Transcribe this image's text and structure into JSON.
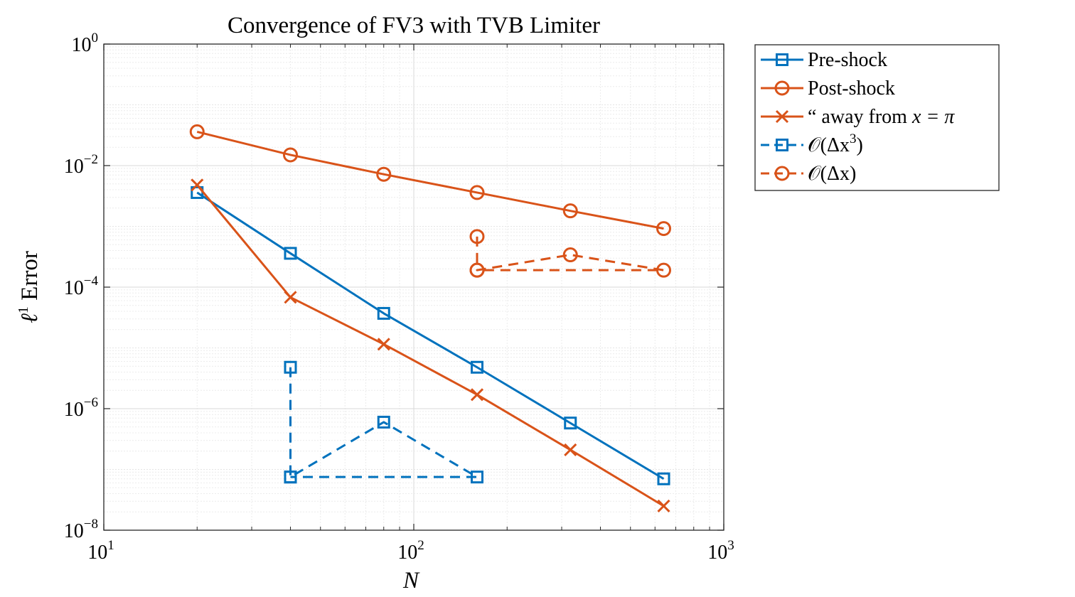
{
  "chart_data": {
    "type": "line",
    "title": "Convergence of FV3 with TVB Limiter",
    "xlabel": "N",
    "ylabel_symbol": "ℓ",
    "ylabel_sup": "1",
    "ylabel_text": " Error",
    "x_scale": "log",
    "y_scale": "log",
    "xlim": [
      10,
      1000
    ],
    "ylim": [
      1e-08,
      1
    ],
    "x_ticks": [
      {
        "base": "10",
        "exp": "1",
        "value": 10
      },
      {
        "base": "10",
        "exp": "2",
        "value": 100
      },
      {
        "base": "10",
        "exp": "3",
        "value": 1000
      }
    ],
    "y_ticks": [
      {
        "base": "10",
        "exp": "0",
        "value": 1
      },
      {
        "base": "10",
        "exp": "−2",
        "value": 0.01
      },
      {
        "base": "10",
        "exp": "−4",
        "value": 0.0001
      },
      {
        "base": "10",
        "exp": "−6",
        "value": 1e-06
      },
      {
        "base": "10",
        "exp": "−8",
        "value": 1e-08
      }
    ],
    "grid": true,
    "minor_grid": true,
    "legend_position": "outside-right-top",
    "series": [
      {
        "name": "Pre-shock",
        "color": "#0072BD",
        "marker": "square",
        "dash": "solid",
        "x": [
          20,
          40,
          80,
          160,
          320,
          640
        ],
        "y": [
          0.0036,
          0.00036,
          3.7e-05,
          4.8e-06,
          5.8e-07,
          7e-08
        ]
      },
      {
        "name": "Post-shock",
        "color": "#D95319",
        "marker": "circle",
        "dash": "solid",
        "x": [
          20,
          40,
          80,
          160,
          320,
          640
        ],
        "y": [
          0.036,
          0.015,
          0.0072,
          0.0036,
          0.0018,
          0.00092
        ]
      },
      {
        "name": "“ away from ",
        "name_math": "x = π",
        "color": "#D95319",
        "marker": "x",
        "dash": "solid",
        "x": [
          20,
          40,
          80,
          160,
          320,
          640
        ],
        "y": [
          0.0048,
          6.8e-05,
          1.15e-05,
          1.7e-06,
          2.1e-07,
          2.5e-08
        ]
      },
      {
        "name": "𝒪(Δx",
        "name_sup": "3",
        "name_end": ")",
        "color": "#0072BD",
        "marker": "square",
        "dash": "dashed",
        "x": [
          40,
          40,
          80,
          160,
          40
        ],
        "y": [
          4.8e-06,
          7.5e-08,
          6e-07,
          7.5e-08,
          7.5e-08
        ]
      },
      {
        "name": "𝒪(Δx)",
        "color": "#D95319",
        "marker": "circle",
        "dash": "dashed",
        "x": [
          160,
          160,
          320,
          640,
          160
        ],
        "y": [
          0.00068,
          0.00019,
          0.00034,
          0.00019,
          0.00019
        ]
      }
    ]
  }
}
